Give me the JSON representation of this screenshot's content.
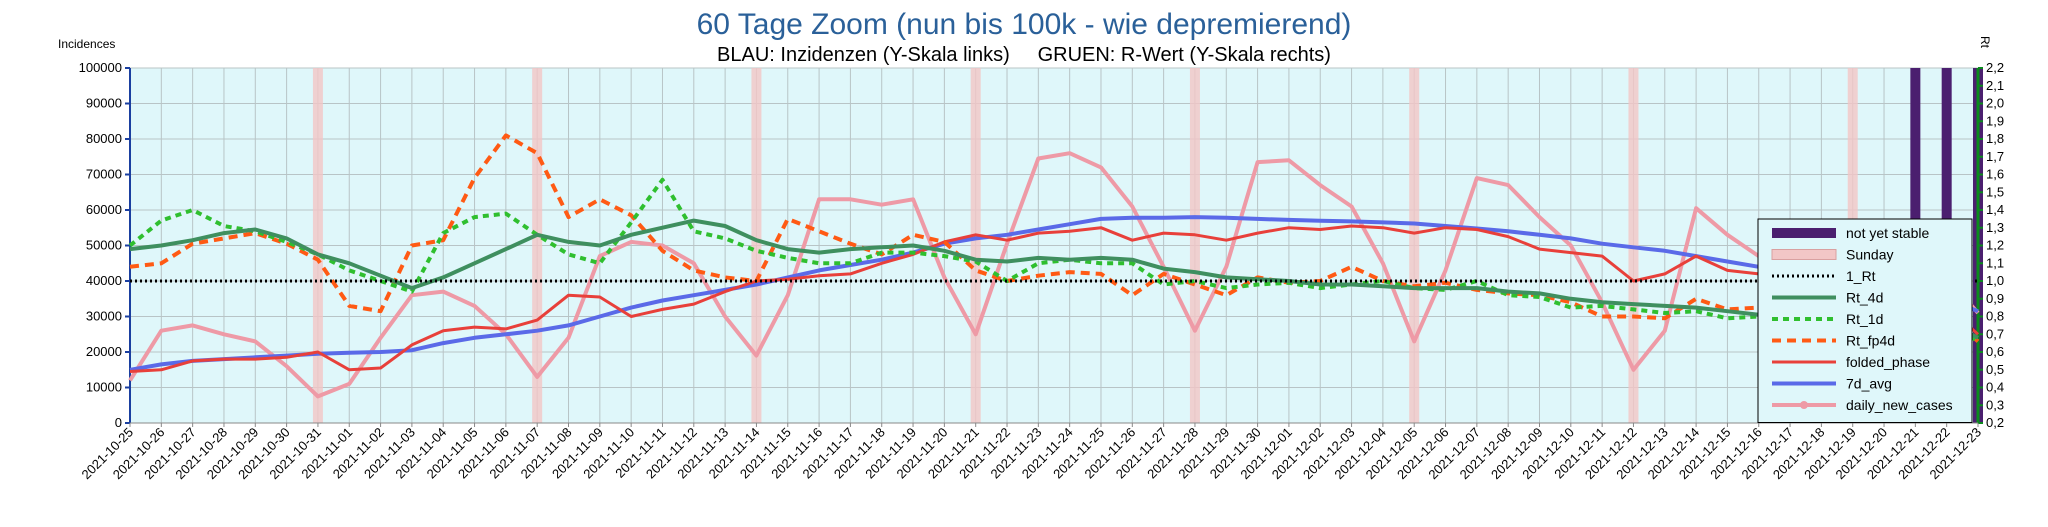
{
  "chart_data": {
    "type": "line",
    "title": "60 Tage Zoom  (nun bis 100k - wie depremierend)",
    "subtitle": "BLAU: Inzidenzen (Y-Skala links)     GRUEN: R-Wert (Y-Skala rechts)",
    "ylabel": "Incidences",
    "y2label": "Rt",
    "ylim": [
      0,
      100000
    ],
    "y2lim": [
      0.2,
      2.2
    ],
    "yticks": [
      "0",
      "10000",
      "20000",
      "30000",
      "40000",
      "50000",
      "60000",
      "70000",
      "80000",
      "90000",
      "100000"
    ],
    "y2ticks": [
      "0,2",
      "0,3",
      "0,4",
      "0,5",
      "0,6",
      "0,7",
      "0,8",
      "0,9",
      "1,0",
      "1,1",
      "1,2",
      "1,3",
      "1,4",
      "1,5",
      "1,6",
      "1,7",
      "1,8",
      "1,9",
      "2,0",
      "2,1",
      "2,2"
    ],
    "grid": true,
    "legend_position": "right",
    "categories": [
      "2021-10-25",
      "2021-10-26",
      "2021-10-27",
      "2021-10-28",
      "2021-10-29",
      "2021-10-30",
      "2021-10-31",
      "2021-11-01",
      "2021-11-02",
      "2021-11-03",
      "2021-11-04",
      "2021-11-05",
      "2021-11-06",
      "2021-11-07",
      "2021-11-08",
      "2021-11-09",
      "2021-11-10",
      "2021-11-11",
      "2021-11-12",
      "2021-11-13",
      "2021-11-14",
      "2021-11-15",
      "2021-11-16",
      "2021-11-17",
      "2021-11-18",
      "2021-11-19",
      "2021-11-20",
      "2021-11-21",
      "2021-11-22",
      "2021-11-23",
      "2021-11-24",
      "2021-11-25",
      "2021-11-26",
      "2021-11-27",
      "2021-11-28",
      "2021-11-29",
      "2021-11-30",
      "2021-12-01",
      "2021-12-02",
      "2021-12-03",
      "2021-12-04",
      "2021-12-05",
      "2021-12-06",
      "2021-12-07",
      "2021-12-08",
      "2021-12-09",
      "2021-12-10",
      "2021-12-11",
      "2021-12-12",
      "2021-12-13",
      "2021-12-14",
      "2021-12-15",
      "2021-12-16",
      "2021-12-17",
      "2021-12-18",
      "2021-12-19",
      "2021-12-20",
      "2021-12-21",
      "2021-12-22",
      "2021-12-23"
    ],
    "sundays": [
      "2021-10-31",
      "2021-11-07",
      "2021-11-14",
      "2021-11-21",
      "2021-11-28",
      "2021-12-05",
      "2021-12-12",
      "2021-12-19"
    ],
    "not_yet_stable": [
      "2021-12-21",
      "2021-12-22",
      "2021-12-23"
    ],
    "series": [
      {
        "name": "not yet stable",
        "kind": "band",
        "color": "#4b1f6f"
      },
      {
        "name": "Sunday",
        "kind": "band",
        "color": "#f2c6c6"
      },
      {
        "name": "1_Rt",
        "kind": "line",
        "axis": "right",
        "color": "#000000",
        "dash": "dot",
        "values": [
          1.0,
          1.0,
          1.0,
          1.0,
          1.0,
          1.0,
          1.0,
          1.0,
          1.0,
          1.0,
          1.0,
          1.0,
          1.0,
          1.0,
          1.0,
          1.0,
          1.0,
          1.0,
          1.0,
          1.0,
          1.0,
          1.0,
          1.0,
          1.0,
          1.0,
          1.0,
          1.0,
          1.0,
          1.0,
          1.0,
          1.0,
          1.0,
          1.0,
          1.0,
          1.0,
          1.0,
          1.0,
          1.0,
          1.0,
          1.0,
          1.0,
          1.0,
          1.0,
          1.0,
          1.0,
          1.0,
          1.0,
          1.0,
          1.0,
          1.0,
          1.0,
          1.0,
          1.0,
          1.0,
          1.0,
          1.0,
          1.0,
          1.0,
          1.0,
          1.0
        ]
      },
      {
        "name": "Rt_4d",
        "kind": "line",
        "axis": "right",
        "color": "#3f8f5f",
        "values": [
          1.18,
          1.2,
          1.23,
          1.27,
          1.29,
          1.24,
          1.15,
          1.1,
          1.03,
          0.96,
          1.02,
          1.1,
          1.18,
          1.26,
          1.22,
          1.2,
          1.26,
          1.3,
          1.34,
          1.31,
          1.23,
          1.18,
          1.16,
          1.18,
          1.19,
          1.2,
          1.17,
          1.12,
          1.11,
          1.13,
          1.12,
          1.13,
          1.12,
          1.07,
          1.05,
          1.02,
          1.01,
          1.0,
          0.98,
          0.98,
          0.97,
          0.96,
          0.96,
          0.96,
          0.94,
          0.93,
          0.9,
          0.88,
          0.87,
          0.86,
          0.85,
          0.83,
          0.81,
          0.8,
          0.8,
          0.8,
          0.8,
          0.79,
          0.77,
          0.68
        ]
      },
      {
        "name": "Rt_1d",
        "kind": "line",
        "axis": "right",
        "color": "#2fbf2f",
        "dash": "short",
        "values": [
          1.2,
          1.34,
          1.4,
          1.31,
          1.28,
          1.22,
          1.15,
          1.06,
          1.0,
          0.94,
          1.27,
          1.36,
          1.38,
          1.26,
          1.15,
          1.1,
          1.33,
          1.57,
          1.28,
          1.24,
          1.17,
          1.13,
          1.1,
          1.1,
          1.16,
          1.16,
          1.14,
          1.11,
          1.0,
          1.1,
          1.12,
          1.1,
          1.1,
          0.98,
          1.0,
          0.96,
          0.98,
          0.99,
          0.96,
          0.98,
          1.0,
          0.96,
          0.95,
          1.0,
          0.92,
          0.91,
          0.85,
          0.86,
          0.84,
          0.82,
          0.83,
          0.79,
          0.8,
          0.77,
          0.78,
          0.84,
          0.88,
          0.86,
          0.77,
          0.66
        ]
      },
      {
        "name": "Rt_fp4d",
        "kind": "line",
        "axis": "right",
        "color": "#ff5a14",
        "dash": "long",
        "values": [
          1.08,
          1.1,
          1.21,
          1.24,
          1.27,
          1.21,
          1.12,
          0.86,
          0.83,
          1.2,
          1.23,
          1.58,
          1.82,
          1.72,
          1.36,
          1.46,
          1.37,
          1.17,
          1.06,
          1.02,
          1.0,
          1.35,
          1.28,
          1.21,
          1.15,
          1.26,
          1.22,
          1.06,
          1.0,
          1.03,
          1.05,
          1.04,
          0.92,
          1.04,
          0.98,
          0.92,
          1.02,
          0.99,
          1.0,
          1.08,
          1.0,
          0.97,
          0.99,
          0.95,
          0.93,
          0.92,
          0.88,
          0.8,
          0.8,
          0.79,
          0.9,
          0.84,
          0.85,
          0.86,
          0.87,
          0.83,
          0.84,
          0.88,
          0.81,
          0.66
        ]
      },
      {
        "name": "folded_phase",
        "kind": "line",
        "axis": "left",
        "color": "#e8403a",
        "values": [
          14500,
          15000,
          17500,
          18000,
          18000,
          18500,
          20000,
          15000,
          15500,
          22000,
          26000,
          27000,
          26500,
          29000,
          36000,
          35500,
          30000,
          32000,
          33500,
          37000,
          40000,
          40500,
          41500,
          42000,
          45000,
          47500,
          51000,
          53000,
          51500,
          53500,
          54000,
          55000,
          51500,
          53500,
          53000,
          51500,
          53500,
          55000,
          54500,
          55500,
          55000,
          53500,
          55000,
          54500,
          52500,
          49000,
          48000,
          47000,
          40000,
          42000,
          47000,
          43000,
          42000,
          40500,
          40000,
          38500,
          36500,
          35000,
          33000,
          25000
        ]
      },
      {
        "name": "7d_avg",
        "kind": "line",
        "axis": "left",
        "color": "#5a6ae8",
        "values": [
          15000,
          16500,
          17500,
          18000,
          18500,
          19000,
          19500,
          19800,
          20000,
          20500,
          22500,
          24000,
          25000,
          26000,
          27500,
          30000,
          32500,
          34500,
          36000,
          37500,
          39000,
          41000,
          43000,
          44500,
          46000,
          48000,
          50500,
          52000,
          53000,
          54500,
          56000,
          57500,
          57800,
          57800,
          58000,
          57800,
          57500,
          57200,
          57000,
          56800,
          56500,
          56200,
          55500,
          54800,
          54000,
          53000,
          52000,
          50500,
          49500,
          48500,
          47000,
          45500,
          44000,
          42000,
          40500,
          39500,
          38500,
          37500,
          35000,
          31500
        ]
      },
      {
        "name": "daily_new_cases",
        "kind": "line",
        "axis": "left",
        "color": "#ee9aa6",
        "marker": "circle",
        "values": [
          12000,
          26000,
          27500,
          25000,
          23000,
          16000,
          7500,
          11000,
          24000,
          36000,
          37000,
          33000,
          25000,
          13000,
          24000,
          47000,
          51000,
          50000,
          45000,
          30000,
          19000,
          36000,
          63000,
          63000,
          61500,
          63000,
          41000,
          25000,
          50500,
          74500,
          76000,
          72000,
          61000,
          44000,
          26000,
          44000,
          73500,
          74000,
          67000,
          61000,
          45000,
          23000,
          43000,
          69000,
          67000,
          58000,
          50000,
          34000,
          15000,
          26000,
          60500,
          53000,
          47000,
          39000,
          30000,
          12000,
          26500,
          47000,
          41000,
          31000
        ]
      }
    ]
  }
}
